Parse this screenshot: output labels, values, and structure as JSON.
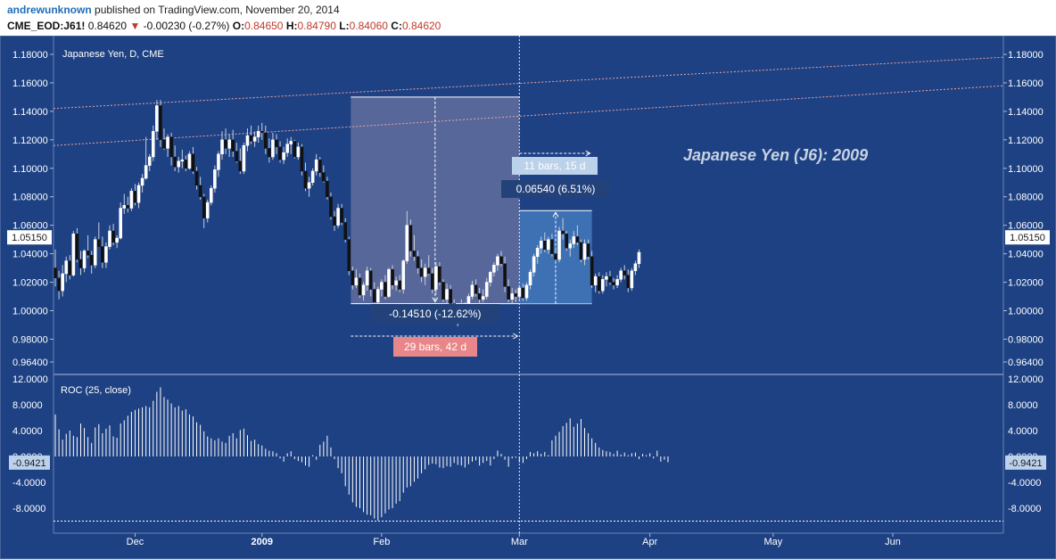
{
  "header": {
    "author": "andrewunknown",
    "published_text": "published on TradingView.com, November 20, 2014",
    "symbol": "CME_EOD:J61!",
    "last": "0.84620",
    "change_arrow": "▼",
    "change": "-0.00230 (-0.27%)",
    "o_label": "O:",
    "o_value": "0.84650",
    "h_label": "H:",
    "h_value": "0.84790",
    "l_label": "L:",
    "l_value": "0.84060",
    "c_label": "C:",
    "c_value": "0.84620"
  },
  "chart_data": [
    {
      "type": "candlestick",
      "title": "Japanese Yen, D, CME",
      "annotation": "Japanese Yen (J6): 2009",
      "ylim": [
        0.955,
        1.19
      ],
      "yticks": [
        "1.18000",
        "1.16000",
        "1.14000",
        "1.12000",
        "1.10000",
        "1.08000",
        "1.06000",
        "1.04000",
        "1.02000",
        "1.00000",
        "0.98000",
        "0.96400"
      ],
      "ytick_values": [
        1.18,
        1.16,
        1.14,
        1.12,
        1.1,
        1.08,
        1.06,
        1.04,
        1.02,
        1.0,
        0.98,
        0.964
      ],
      "current_price_label": "1.05150",
      "current_price": 1.0515,
      "xaxis_labels": [
        "Dec",
        "2009",
        "Feb",
        "Mar",
        "Apr",
        "May",
        "Jun"
      ],
      "xaxis_label_bars": [
        22,
        57,
        90,
        128,
        164,
        198,
        231
      ],
      "bars_count": 262,
      "candles": [
        [
          1.03,
          1.043,
          1.017,
          1.023
        ],
        [
          1.023,
          1.028,
          1.008,
          1.014
        ],
        [
          1.014,
          1.032,
          1.01,
          1.026
        ],
        [
          1.026,
          1.038,
          1.02,
          1.035
        ],
        [
          1.035,
          1.039,
          1.022,
          1.025
        ],
        [
          1.025,
          1.056,
          1.024,
          1.054
        ],
        [
          1.054,
          1.058,
          1.034,
          1.036
        ],
        [
          1.036,
          1.042,
          1.025,
          1.03
        ],
        [
          1.03,
          1.043,
          1.027,
          1.042
        ],
        [
          1.042,
          1.053,
          1.037,
          1.039
        ],
        [
          1.039,
          1.042,
          1.026,
          1.032
        ],
        [
          1.032,
          1.052,
          1.03,
          1.05
        ],
        [
          1.05,
          1.062,
          1.045,
          1.045
        ],
        [
          1.045,
          1.052,
          1.03,
          1.034
        ],
        [
          1.034,
          1.048,
          1.03,
          1.045
        ],
        [
          1.045,
          1.06,
          1.043,
          1.056
        ],
        [
          1.056,
          1.061,
          1.046,
          1.048
        ],
        [
          1.048,
          1.053,
          1.044,
          1.051
        ],
        [
          1.051,
          1.076,
          1.05,
          1.072
        ],
        [
          1.072,
          1.082,
          1.068,
          1.074
        ],
        [
          1.074,
          1.08,
          1.069,
          1.072
        ],
        [
          1.072,
          1.086,
          1.07,
          1.084
        ],
        [
          1.084,
          1.089,
          1.074,
          1.076
        ],
        [
          1.076,
          1.09,
          1.072,
          1.088
        ],
        [
          1.088,
          1.096,
          1.083,
          1.093
        ],
        [
          1.093,
          1.122,
          1.092,
          1.102
        ],
        [
          1.102,
          1.11,
          1.098,
          1.108
        ],
        [
          1.108,
          1.13,
          1.105,
          1.126
        ],
        [
          1.126,
          1.148,
          1.12,
          1.144
        ],
        [
          1.144,
          1.148,
          1.115,
          1.12
        ],
        [
          1.12,
          1.128,
          1.113,
          1.114
        ],
        [
          1.114,
          1.124,
          1.108,
          1.122
        ],
        [
          1.122,
          1.125,
          1.102,
          1.108
        ],
        [
          1.108,
          1.116,
          1.098,
          1.101
        ],
        [
          1.101,
          1.108,
          1.097,
          1.105
        ],
        [
          1.105,
          1.113,
          1.1,
          1.106
        ],
        [
          1.106,
          1.109,
          1.098,
          1.1
        ],
        [
          1.1,
          1.112,
          1.099,
          1.11
        ],
        [
          1.11,
          1.115,
          1.096,
          1.098
        ],
        [
          1.098,
          1.101,
          1.085,
          1.088
        ],
        [
          1.088,
          1.094,
          1.078,
          1.08
        ],
        [
          1.08,
          1.082,
          1.058,
          1.065
        ],
        [
          1.065,
          1.078,
          1.062,
          1.076
        ],
        [
          1.076,
          1.088,
          1.074,
          1.086
        ],
        [
          1.086,
          1.102,
          1.083,
          1.099
        ],
        [
          1.099,
          1.112,
          1.094,
          1.11
        ],
        [
          1.11,
          1.126,
          1.106,
          1.12
        ],
        [
          1.12,
          1.128,
          1.11,
          1.114
        ],
        [
          1.114,
          1.124,
          1.108,
          1.12
        ],
        [
          1.12,
          1.127,
          1.108,
          1.112
        ],
        [
          1.112,
          1.118,
          1.104,
          1.105
        ],
        [
          1.105,
          1.114,
          1.096,
          1.098
        ],
        [
          1.098,
          1.118,
          1.096,
          1.116
        ],
        [
          1.116,
          1.128,
          1.112,
          1.123
        ],
        [
          1.123,
          1.13,
          1.117,
          1.119
        ],
        [
          1.119,
          1.126,
          1.115,
          1.122
        ],
        [
          1.122,
          1.13,
          1.118,
          1.126
        ],
        [
          1.126,
          1.132,
          1.12,
          1.125
        ],
        [
          1.125,
          1.13,
          1.11,
          1.114
        ],
        [
          1.114,
          1.121,
          1.104,
          1.108
        ],
        [
          1.108,
          1.125,
          1.106,
          1.12
        ],
        [
          1.12,
          1.124,
          1.11,
          1.115
        ],
        [
          1.115,
          1.119,
          1.104,
          1.106
        ],
        [
          1.106,
          1.115,
          1.103,
          1.111
        ],
        [
          1.111,
          1.121,
          1.108,
          1.117
        ],
        [
          1.117,
          1.122,
          1.11,
          1.119
        ],
        [
          1.119,
          1.12,
          1.107,
          1.108
        ],
        [
          1.108,
          1.118,
          1.106,
          1.115
        ],
        [
          1.115,
          1.117,
          1.095,
          1.098
        ],
        [
          1.098,
          1.104,
          1.084,
          1.086
        ],
        [
          1.086,
          1.094,
          1.08,
          1.09
        ],
        [
          1.09,
          1.1,
          1.088,
          1.098
        ],
        [
          1.098,
          1.11,
          1.095,
          1.106
        ],
        [
          1.106,
          1.108,
          1.094,
          1.097
        ],
        [
          1.097,
          1.102,
          1.09,
          1.091
        ],
        [
          1.091,
          1.094,
          1.078,
          1.08
        ],
        [
          1.08,
          1.083,
          1.064,
          1.066
        ],
        [
          1.066,
          1.07,
          1.056,
          1.06
        ],
        [
          1.06,
          1.075,
          1.058,
          1.072
        ],
        [
          1.072,
          1.075,
          1.06,
          1.062
        ],
        [
          1.062,
          1.065,
          1.048,
          1.05
        ],
        [
          1.05,
          1.052,
          1.025,
          1.028
        ],
        [
          1.028,
          1.031,
          1.015,
          1.018
        ],
        [
          1.018,
          1.029,
          1.016,
          1.023
        ],
        [
          1.023,
          1.026,
          1.009,
          1.011
        ],
        [
          1.011,
          1.02,
          1.007,
          1.018
        ],
        [
          1.018,
          1.031,
          1.014,
          1.028
        ],
        [
          1.028,
          1.03,
          1.01,
          1.015
        ],
        [
          1.015,
          1.02,
          1.004,
          1.006
        ],
        [
          1.006,
          1.017,
          1.005,
          1.015
        ],
        [
          1.015,
          1.022,
          1.01,
          1.02
        ],
        [
          1.02,
          1.025,
          1.008,
          1.01
        ],
        [
          1.01,
          1.03,
          1.009,
          1.029
        ],
        [
          1.029,
          1.032,
          1.015,
          1.018
        ],
        [
          1.018,
          1.024,
          1.014,
          1.021
        ],
        [
          1.021,
          1.025,
          1.013,
          1.015
        ],
        [
          1.015,
          1.036,
          1.012,
          1.035
        ],
        [
          1.035,
          1.07,
          1.033,
          1.06
        ],
        [
          1.06,
          1.064,
          1.038,
          1.042
        ],
        [
          1.042,
          1.053,
          1.035,
          1.038
        ],
        [
          1.038,
          1.042,
          1.026,
          1.03
        ],
        [
          1.03,
          1.036,
          1.02,
          1.024
        ],
        [
          1.024,
          1.033,
          1.018,
          1.03
        ],
        [
          1.03,
          1.039,
          1.025,
          1.026
        ],
        [
          1.026,
          1.03,
          1.012,
          1.015
        ],
        [
          1.015,
          1.034,
          1.011,
          1.031
        ],
        [
          1.031,
          1.034,
          1.018,
          1.02
        ],
        [
          1.02,
          1.022,
          1.006,
          1.008
        ],
        [
          1.008,
          1.019,
          1.004,
          1.015
        ],
        [
          1.015,
          1.018,
          1.002,
          1.005
        ],
        [
          1.005,
          1.008,
          0.993,
          0.996
        ],
        [
          0.996,
          1.005,
          0.989,
          1.002
        ],
        [
          1.002,
          1.008,
          0.996,
          0.998
        ],
        [
          0.998,
          1.006,
          0.995,
          1.005
        ],
        [
          1.005,
          1.012,
          1.0,
          1.01
        ],
        [
          1.01,
          1.021,
          1.008,
          1.018
        ],
        [
          1.018,
          1.022,
          1.01,
          1.012
        ],
        [
          1.012,
          1.016,
          1.003,
          1.008
        ],
        [
          1.008,
          1.015,
          1.006,
          1.01
        ],
        [
          1.01,
          1.023,
          1.008,
          1.02
        ],
        [
          1.02,
          1.028,
          1.017,
          1.027
        ],
        [
          1.027,
          1.034,
          1.024,
          1.032
        ],
        [
          1.032,
          1.04,
          1.028,
          1.038
        ],
        [
          1.038,
          1.042,
          1.031,
          1.033
        ],
        [
          1.033,
          1.038,
          1.013,
          1.017
        ],
        [
          1.017,
          1.022,
          1.006,
          1.008
        ],
        [
          1.008,
          1.016,
          1.005,
          1.012
        ],
        [
          1.012,
          1.015,
          1.006,
          1.01
        ],
        [
          1.01,
          1.018,
          1.008,
          1.016
        ],
        [
          1.016,
          1.019,
          1.007,
          1.009
        ],
        [
          1.009,
          1.02,
          1.007,
          1.018
        ],
        [
          1.018,
          1.029,
          1.015,
          1.027
        ],
        [
          1.027,
          1.04,
          1.024,
          1.038
        ],
        [
          1.038,
          1.046,
          1.033,
          1.044
        ],
        [
          1.044,
          1.052,
          1.04,
          1.049
        ],
        [
          1.049,
          1.055,
          1.041,
          1.043
        ],
        [
          1.043,
          1.052,
          1.04,
          1.05
        ],
        [
          1.05,
          1.054,
          1.038,
          1.04
        ],
        [
          1.04,
          1.044,
          1.034,
          1.036
        ],
        [
          1.036,
          1.059,
          1.034,
          1.056
        ],
        [
          1.056,
          1.065,
          1.05,
          1.054
        ],
        [
          1.054,
          1.056,
          1.042,
          1.044
        ],
        [
          1.044,
          1.05,
          1.038,
          1.047
        ],
        [
          1.047,
          1.056,
          1.044,
          1.052
        ],
        [
          1.052,
          1.06,
          1.046,
          1.048
        ],
        [
          1.048,
          1.05,
          1.034,
          1.036
        ],
        [
          1.036,
          1.05,
          1.032,
          1.047
        ],
        [
          1.047,
          1.05,
          1.036,
          1.038
        ],
        [
          1.038,
          1.042,
          1.016,
          1.018
        ],
        [
          1.018,
          1.026,
          1.013,
          1.024
        ],
        [
          1.024,
          1.027,
          1.012,
          1.014
        ],
        [
          1.014,
          1.025,
          1.012,
          1.022
        ],
        [
          1.022,
          1.027,
          1.017,
          1.024
        ],
        [
          1.024,
          1.028,
          1.018,
          1.02
        ],
        [
          1.02,
          1.023,
          1.015,
          1.018
        ],
        [
          1.018,
          1.025,
          1.016,
          1.022
        ],
        [
          1.022,
          1.03,
          1.02,
          1.028
        ],
        [
          1.028,
          1.032,
          1.022,
          1.025
        ],
        [
          1.025,
          1.029,
          1.013,
          1.016
        ],
        [
          1.016,
          1.03,
          1.014,
          1.028
        ],
        [
          1.028,
          1.035,
          1.025,
          1.033
        ],
        [
          1.033,
          1.043,
          1.03,
          1.041
        ]
      ],
      "period_bars": {
        "decline_start": 82,
        "decline_end": 128,
        "rebound_start": 128,
        "rebound_end": 148,
        "crosshair": 128
      },
      "channel_lines": [
        {
          "name": "upper",
          "x": [
            0,
            262
          ],
          "y": [
            1.142,
            1.178
          ]
        },
        {
          "name": "lower",
          "x": [
            0,
            262
          ],
          "y": [
            1.116,
            1.158
          ]
        }
      ],
      "measure_decline": {
        "text": "-0.14510 (-12.62%)",
        "from": 1.15,
        "to": 1.0049,
        "bars_text": "29 bars, 42 d"
      },
      "measure_rebound": {
        "text": "0.06540 (6.51%)",
        "from": 1.0049,
        "to": 1.0703,
        "bars_text": "11 bars, 15 d"
      }
    },
    {
      "type": "bar",
      "title": "ROC (25, close)",
      "ylim": [
        -11,
        12.3
      ],
      "yticks": [
        "12.0000",
        "8.0000",
        "4.0000",
        "0.0000",
        "-4.0000",
        "-8.0000"
      ],
      "ytick_values": [
        12,
        8,
        4,
        0,
        -4,
        -8
      ],
      "current_value_label": "-0.9421",
      "current_value": -0.9421,
      "min_line": -10,
      "values": [
        6.5,
        4.2,
        2.6,
        3.5,
        4.0,
        3.2,
        3.0,
        5.1,
        4.4,
        3.0,
        2.1,
        4.5,
        5.0,
        3.6,
        4.3,
        4.8,
        3.1,
        2.9,
        5.1,
        5.6,
        6.3,
        6.9,
        7.2,
        7.4,
        7.6,
        7.8,
        7.6,
        8.6,
        10.0,
        10.7,
        9.2,
        8.8,
        8.2,
        7.6,
        7.8,
        7.1,
        7.3,
        6.5,
        6.2,
        5.3,
        4.9,
        3.9,
        3.1,
        2.8,
        2.5,
        2.8,
        2.3,
        2.1,
        3.2,
        3.6,
        2.8,
        4.1,
        4.3,
        3.3,
        2.4,
        2.6,
        1.9,
        1.7,
        1.2,
        0.9,
        0.8,
        0.5,
        -0.3,
        -0.8,
        0.5,
        0.8,
        -0.4,
        -0.7,
        -0.9,
        -1.4,
        -1.6,
        0.2,
        -0.5,
        1.8,
        2.3,
        3.2,
        1.4,
        -0.4,
        -1.8,
        -2.6,
        -4.6,
        -5.9,
        -7.1,
        -7.8,
        -8.0,
        -8.6,
        -9.0,
        -9.1,
        -9.6,
        -9.9,
        -9.4,
        -8.8,
        -8.2,
        -8.0,
        -7.3,
        -6.9,
        -5.6,
        -4.8,
        -4.6,
        -3.9,
        -3.4,
        -2.6,
        -2.0,
        -1.3,
        -1.1,
        -1.2,
        -1.7,
        -1.8,
        -1.5,
        -1.6,
        -1.0,
        -1.3,
        -1.4,
        -1.7,
        -1.2,
        -0.8,
        -0.6,
        -1.4,
        -1.0,
        -0.7,
        -1.4,
        -0.4,
        0.9,
        0.4,
        -0.5,
        -1.6,
        -0.3,
        -0.2,
        -0.9,
        -1.0,
        -0.4,
        0.7,
        0.5,
        0.8,
        0.4,
        0.7,
        0.2,
        2.5,
        3.2,
        3.8,
        4.7,
        5.2,
        5.9,
        4.6,
        5.1,
        5.8,
        4.4,
        3.6,
        2.8,
        2.1,
        1.4,
        1.0,
        0.8,
        0.7,
        0.4,
        0.9,
        0.3,
        0.6,
        0.2,
        0.5,
        0.6,
        -0.4,
        0.4,
        0.2,
        0.5,
        -0.3,
        0.9,
        -0.8,
        -0.5,
        -0.9
      ]
    }
  ]
}
